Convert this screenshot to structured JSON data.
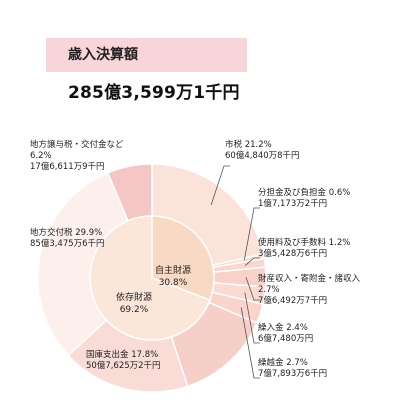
{
  "header": {
    "title": "歳入決算額",
    "total": "285億3,599万1千円"
  },
  "chart_data": {
    "type": "pie",
    "title": "歳入決算額",
    "total": "285億3,599万1千円",
    "inner_ring": [
      {
        "name": "自主財源",
        "percent": 30.8,
        "percent_label": "30.8%",
        "color": "#f8d9c4"
      },
      {
        "name": "依存財源",
        "percent": 69.2,
        "percent_label": "69.2%",
        "color": "#fbe6da"
      }
    ],
    "outer_ring": [
      {
        "name": "市税",
        "percent": 21.2,
        "percent_label": "21.2%",
        "amount": "60億4,840万8千円",
        "group": "自主財源",
        "color": "#fce3da"
      },
      {
        "name": "分担金及び負担金",
        "percent": 0.6,
        "percent_label": "0.6%",
        "amount": "1億7,173万2千円",
        "group": "自主財源",
        "color": "#fbdcd3"
      },
      {
        "name": "使用料及び手数料",
        "percent": 1.2,
        "percent_label": "1.2%",
        "amount": "3億5,428万6千円",
        "group": "自主財源",
        "color": "#fad6cd"
      },
      {
        "name": "財産収入・寄附金・諸収入",
        "percent": 2.7,
        "percent_label": "2.7%",
        "amount": "7億6,492万7千円",
        "group": "自主財源",
        "color": "#f9d1c8"
      },
      {
        "name": "繰入金",
        "percent": 2.4,
        "percent_label": "2.4%",
        "amount": "6億7,480万円",
        "group": "自主財源",
        "color": "#fbdad1"
      },
      {
        "name": "繰越金",
        "percent": 2.7,
        "percent_label": "2.7%",
        "amount": "7億7,893万6千円",
        "group": "自主財源",
        "color": "#fad4cb"
      },
      {
        "name": "",
        "percent": 13.2,
        "group": "依存財源",
        "color": "#f6cfc9"
      },
      {
        "name": "国庫支出金",
        "percent": 17.8,
        "percent_label": "17.8%",
        "amount": "50億7,625万2千円",
        "group": "依存財源",
        "color": "#f9dcd6"
      },
      {
        "name": "地方交付税",
        "percent": 29.9,
        "percent_label": "29.9%",
        "amount": "85億3,475万6千円",
        "group": "依存財源",
        "color": "#fcefec"
      },
      {
        "name": "地方譲与税・交付金など",
        "percent": 6.2,
        "percent_label": "6.2%",
        "amount": "17億6,611万9千円",
        "group": "依存財源",
        "color": "#f4c6c4"
      }
    ]
  }
}
